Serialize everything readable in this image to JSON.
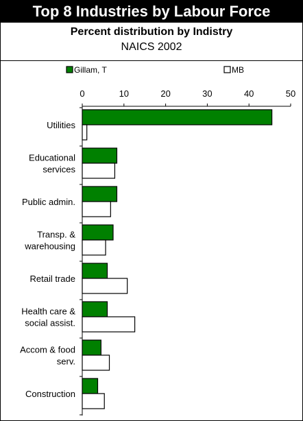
{
  "chart_data": {
    "type": "bar",
    "orientation": "horizontal",
    "title": "Top 8 Industries by Labour Force",
    "subtitle": "Percent distribution by Indistry",
    "subtitle2": "NAICS 2002",
    "xlim": [
      0,
      50
    ],
    "xticks": [
      0,
      10,
      20,
      30,
      40,
      50
    ],
    "legend_position": "top",
    "categories": [
      [
        "Utilities"
      ],
      [
        "Educational",
        "services"
      ],
      [
        "Public admin."
      ],
      [
        "Transp. &",
        "warehousing"
      ],
      [
        "Retail trade"
      ],
      [
        "Health care &",
        "social assist."
      ],
      [
        "Accom & food",
        "serv."
      ],
      [
        "Construction"
      ]
    ],
    "series": [
      {
        "name": "Gillam, T",
        "color": "#008000",
        "values": [
          45.5,
          8.3,
          8.3,
          7.4,
          6.0,
          6.0,
          4.5,
          3.7
        ]
      },
      {
        "name": "MB",
        "color": "#ffffff",
        "values": [
          1.1,
          7.8,
          6.8,
          5.6,
          10.8,
          12.6,
          6.5,
          5.3
        ]
      }
    ]
  }
}
